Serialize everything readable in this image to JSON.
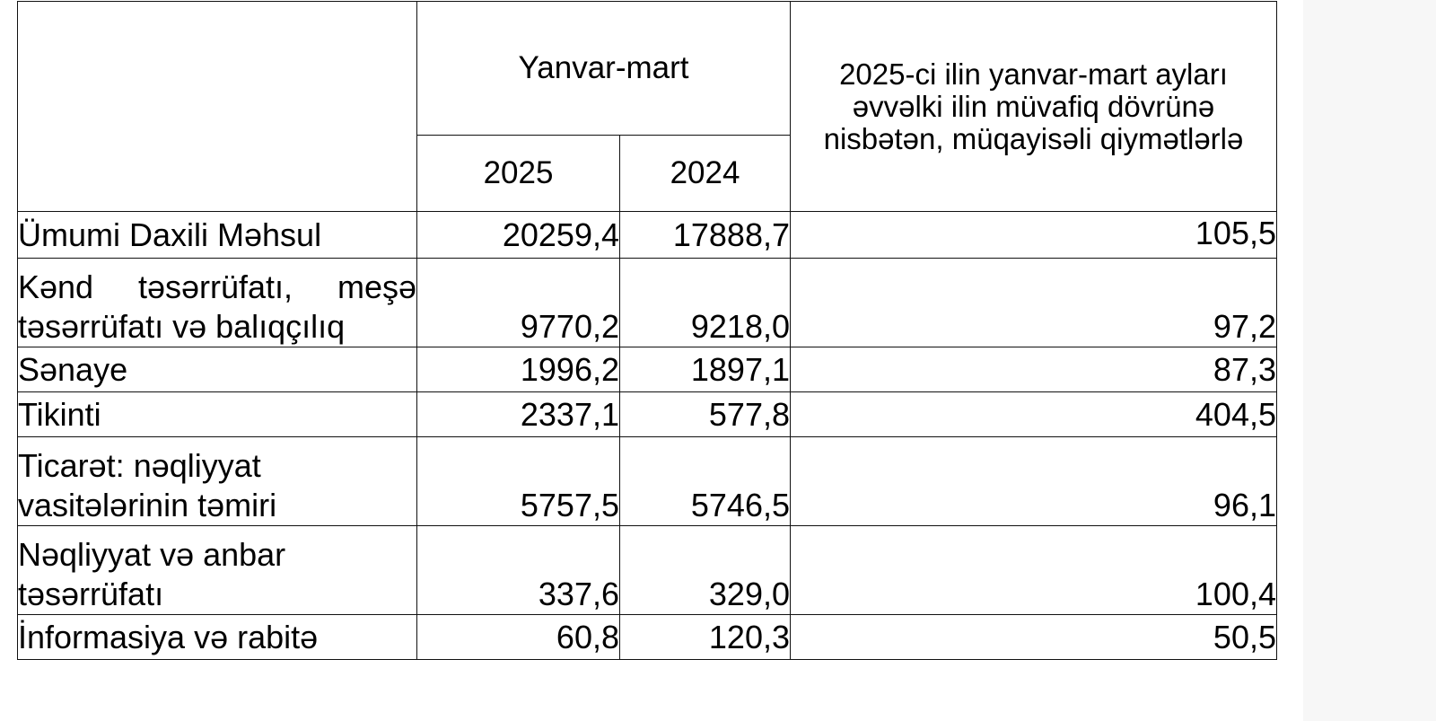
{
  "table": {
    "header": {
      "group_label": "Yanvar-mart",
      "year_2025": "2025",
      "year_2024": "2024",
      "comparison": "2025-ci ilin yanvar-mart ayları əvvəlki ilin müvafiq dövrünə nisbətən, müqayisəli qiymətlərlə"
    },
    "rows": [
      {
        "label": "Ümumi Daxili Məhsul",
        "y2025": "20259,4",
        "y2024": "17888,7",
        "pct": "105,5"
      },
      {
        "label": "Kənd təsərrüfatı, meşə təsərrüfatı və balıqçılıq",
        "y2025": "9770,2",
        "y2024": "9218,0",
        "pct": "97,2"
      },
      {
        "label": "Sənaye",
        "y2025": "1996,2",
        "y2024": "1897,1",
        "pct": "87,3"
      },
      {
        "label": "Tikinti",
        "y2025": "2337,1",
        "y2024": "577,8",
        "pct": "404,5"
      },
      {
        "label": "Ticarət: nəqliyyat vasitələrinin təmiri",
        "y2025": "5757,5",
        "y2024": "5746,5",
        "pct": "96,1"
      },
      {
        "label": "Nəqliyyat və anbar təsərrüfatı",
        "y2025": "337,6",
        "y2024": "329,0",
        "pct": "100,4"
      },
      {
        "label": "İnformasiya və rabitə",
        "y2025": "60,8",
        "y2024": "120,3",
        "pct": "50,5"
      }
    ]
  }
}
